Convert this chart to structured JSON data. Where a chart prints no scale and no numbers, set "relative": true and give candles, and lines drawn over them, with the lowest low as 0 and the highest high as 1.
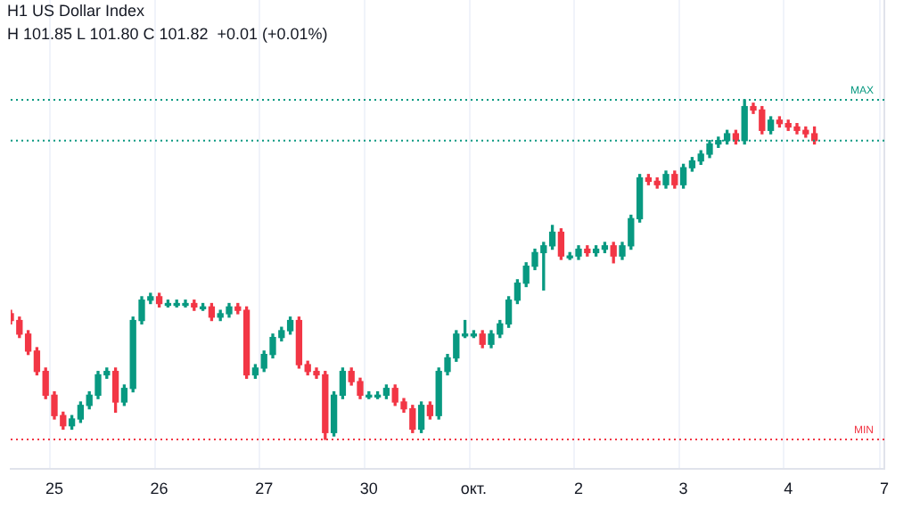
{
  "chart_data": {
    "type": "candlestick",
    "title": "H1 US Dollar Index",
    "subtitle": "H 101.85 L 101.80 C 101.82  +0.01 (+0.01%)",
    "relative": true,
    "grid": "x",
    "legend": false,
    "colors": [
      "#f23645",
      "#f23645",
      "#f23645",
      "#f23645",
      "#f23645",
      "#f23645",
      "#f23645",
      "#089981",
      "#089981",
      "#089981",
      "#089981",
      "#089981",
      "#f23645",
      "#089981",
      "#089981",
      "#089981",
      "#089981",
      "#f23645",
      "#089981",
      "#089981",
      "#089981",
      "#f23645",
      "#089981",
      "#f23645",
      "#089981",
      "#089981",
      "#f23645",
      "#f23645",
      "#089981",
      "#089981",
      "#089981",
      "#089981",
      "#089981",
      "#f23645",
      "#f23645",
      "#f23645",
      "#f23645",
      "#089981",
      "#089981",
      "#f23645",
      "#f23645",
      "#089981",
      "#089981",
      "#089981",
      "#f23645",
      "#f23645",
      "#f23645",
      "#089981",
      "#f23645",
      "#089981",
      "#089981",
      "#089981",
      "#089981",
      "#089981",
      "#f23645",
      "#089981",
      "#089981",
      "#089981",
      "#089981",
      "#089981",
      "#089981",
      "#089981",
      "#089981",
      "#f23645",
      "#089981",
      "#089981",
      "#f23645",
      "#089981",
      "#089981",
      "#f23645",
      "#089981",
      "#089981",
      "#089981",
      "#f23645",
      "#f23645",
      "#089981",
      "#f23645",
      "#089981",
      "#089981",
      "#089981",
      "#089981",
      "#089981",
      "#089981",
      "#f23645",
      "#089981",
      "#f23645",
      "#f23645",
      "#089981",
      "#f23645",
      "#f23645",
      "#f23645",
      "#f23645",
      "#f23645",
      null,
      null,
      null,
      null,
      null,
      null,
      null,
      null
    ],
    "categories": [
      null,
      null,
      null,
      null,
      null,
      "25",
      null,
      null,
      null,
      null,
      null,
      null,
      null,
      null,
      null,
      null,
      null,
      "26",
      null,
      null,
      null,
      null,
      null,
      null,
      null,
      null,
      null,
      null,
      null,
      "27",
      null,
      null,
      null,
      null,
      null,
      null,
      null,
      null,
      null,
      null,
      null,
      "30",
      null,
      null,
      null,
      null,
      null,
      null,
      null,
      null,
      null,
      null,
      null,
      "окт.",
      null,
      null,
      null,
      null,
      null,
      null,
      null,
      null,
      null,
      null,
      null,
      "2",
      null,
      null,
      null,
      null,
      null,
      null,
      null,
      null,
      null,
      null,
      null,
      "3",
      null,
      null,
      null,
      null,
      null,
      null,
      null,
      null,
      null,
      null,
      null,
      "4",
      null,
      null,
      null,
      null,
      null,
      null,
      null,
      null,
      null,
      null,
      "7"
    ],
    "ohlc": [
      [
        0.37,
        0.38,
        0.34,
        0.35
      ],
      [
        0.35,
        0.36,
        0.3,
        0.31
      ],
      [
        0.31,
        0.32,
        0.25,
        0.26
      ],
      [
        0.26,
        0.27,
        0.19,
        0.2
      ],
      [
        0.2,
        0.21,
        0.12,
        0.13
      ],
      [
        0.13,
        0.14,
        0.06,
        0.07
      ],
      [
        0.07,
        0.08,
        0.03,
        0.04
      ],
      [
        0.04,
        0.07,
        0.03,
        0.06
      ],
      [
        0.06,
        0.11,
        0.05,
        0.1
      ],
      [
        0.1,
        0.14,
        0.09,
        0.13
      ],
      [
        0.13,
        0.2,
        0.12,
        0.19
      ],
      [
        0.19,
        0.21,
        0.18,
        0.2
      ],
      [
        0.2,
        0.21,
        0.08,
        0.11
      ],
      [
        0.11,
        0.16,
        0.1,
        0.15
      ],
      [
        0.15,
        0.36,
        0.14,
        0.35
      ],
      [
        0.35,
        0.42,
        0.34,
        0.41
      ],
      [
        0.41,
        0.43,
        0.4,
        0.42
      ],
      [
        0.42,
        0.43,
        0.39,
        0.4
      ],
      [
        0.4,
        0.41,
        0.39,
        0.4
      ],
      [
        0.4,
        0.41,
        0.39,
        0.4
      ],
      [
        0.4,
        0.41,
        0.39,
        0.4
      ],
      [
        0.4,
        0.41,
        0.38,
        0.39
      ],
      [
        0.39,
        0.4,
        0.38,
        0.39
      ],
      [
        0.39,
        0.4,
        0.35,
        0.36
      ],
      [
        0.36,
        0.38,
        0.35,
        0.37
      ],
      [
        0.37,
        0.4,
        0.36,
        0.39
      ],
      [
        0.39,
        0.4,
        0.37,
        0.38
      ],
      [
        0.38,
        0.39,
        0.18,
        0.19
      ],
      [
        0.19,
        0.22,
        0.18,
        0.21
      ],
      [
        0.21,
        0.26,
        0.2,
        0.25
      ],
      [
        0.25,
        0.31,
        0.24,
        0.3
      ],
      [
        0.3,
        0.33,
        0.29,
        0.32
      ],
      [
        0.32,
        0.36,
        0.31,
        0.35
      ],
      [
        0.35,
        0.36,
        0.21,
        0.22
      ],
      [
        0.22,
        0.23,
        0.19,
        0.2
      ],
      [
        0.2,
        0.21,
        0.18,
        0.19
      ],
      [
        0.19,
        0.2,
        0.0,
        0.02
      ],
      [
        0.02,
        0.14,
        0.01,
        0.13
      ],
      [
        0.13,
        0.21,
        0.12,
        0.2
      ],
      [
        0.2,
        0.21,
        0.16,
        0.17
      ],
      [
        0.17,
        0.18,
        0.12,
        0.13
      ],
      [
        0.13,
        0.14,
        0.12,
        0.13
      ],
      [
        0.13,
        0.14,
        0.12,
        0.13
      ],
      [
        0.13,
        0.16,
        0.12,
        0.15
      ],
      [
        0.15,
        0.16,
        0.1,
        0.11
      ],
      [
        0.11,
        0.12,
        0.08,
        0.09
      ],
      [
        0.09,
        0.1,
        0.02,
        0.03
      ],
      [
        0.03,
        0.11,
        0.02,
        0.1
      ],
      [
        0.1,
        0.11,
        0.06,
        0.07
      ],
      [
        0.07,
        0.21,
        0.06,
        0.2
      ],
      [
        0.2,
        0.25,
        0.19,
        0.24
      ],
      [
        0.24,
        0.32,
        0.23,
        0.31
      ],
      [
        0.31,
        0.35,
        0.3,
        0.31
      ],
      [
        0.31,
        0.32,
        0.3,
        0.31
      ],
      [
        0.31,
        0.32,
        0.27,
        0.28
      ],
      [
        0.28,
        0.32,
        0.27,
        0.31
      ],
      [
        0.31,
        0.35,
        0.3,
        0.34
      ],
      [
        0.34,
        0.42,
        0.33,
        0.41
      ],
      [
        0.41,
        0.47,
        0.4,
        0.46
      ],
      [
        0.46,
        0.52,
        0.45,
        0.51
      ],
      [
        0.51,
        0.56,
        0.5,
        0.55
      ],
      [
        0.55,
        0.58,
        0.44,
        0.57
      ],
      [
        0.57,
        0.63,
        0.56,
        0.61
      ],
      [
        0.61,
        0.62,
        0.53,
        0.54
      ],
      [
        0.54,
        0.55,
        0.53,
        0.54
      ],
      [
        0.54,
        0.57,
        0.53,
        0.56
      ],
      [
        0.56,
        0.57,
        0.54,
        0.55
      ],
      [
        0.55,
        0.57,
        0.54,
        0.56
      ],
      [
        0.56,
        0.58,
        0.55,
        0.57
      ],
      [
        0.57,
        0.58,
        0.52,
        0.54
      ],
      [
        0.54,
        0.58,
        0.53,
        0.57
      ],
      [
        0.57,
        0.66,
        0.56,
        0.65
      ],
      [
        0.65,
        0.78,
        0.64,
        0.77
      ],
      [
        0.77,
        0.78,
        0.75,
        0.76
      ],
      [
        0.76,
        0.77,
        0.74,
        0.75
      ],
      [
        0.75,
        0.79,
        0.74,
        0.78
      ],
      [
        0.78,
        0.79,
        0.74,
        0.75
      ],
      [
        0.75,
        0.81,
        0.74,
        0.8
      ],
      [
        0.8,
        0.83,
        0.79,
        0.82
      ],
      [
        0.82,
        0.85,
        0.81,
        0.84
      ],
      [
        0.84,
        0.88,
        0.83,
        0.87
      ],
      [
        0.87,
        0.89,
        0.86,
        0.88
      ],
      [
        0.88,
        0.91,
        0.87,
        0.9
      ],
      [
        0.9,
        0.91,
        0.87,
        0.88
      ],
      [
        0.88,
        1.0,
        0.87,
        0.98
      ],
      [
        0.98,
        0.99,
        0.96,
        0.97
      ],
      [
        0.97,
        0.98,
        0.9,
        0.91
      ],
      [
        0.91,
        0.95,
        0.9,
        0.94
      ],
      [
        0.94,
        0.95,
        0.92,
        0.93
      ],
      [
        0.93,
        0.94,
        0.91,
        0.92
      ],
      [
        0.92,
        0.93,
        0.9,
        0.91
      ],
      [
        0.91,
        0.92,
        0.89,
        0.9
      ],
      [
        0.9,
        0.92,
        0.87,
        0.88
      ],
      null,
      null,
      null,
      null,
      null,
      null,
      null,
      null
    ],
    "ref_lines": [
      {
        "axis": "y",
        "value": 1,
        "label": "MAX",
        "color": "#089981",
        "line_style": "dotted"
      },
      {
        "axis": "y",
        "value": 0,
        "label": "MIN",
        "color": "#f23645",
        "line_style": "dotted"
      },
      {
        "axis": "y",
        "value": 0.88,
        "color": "#089981",
        "line_style": "dotted"
      }
    ]
  }
}
